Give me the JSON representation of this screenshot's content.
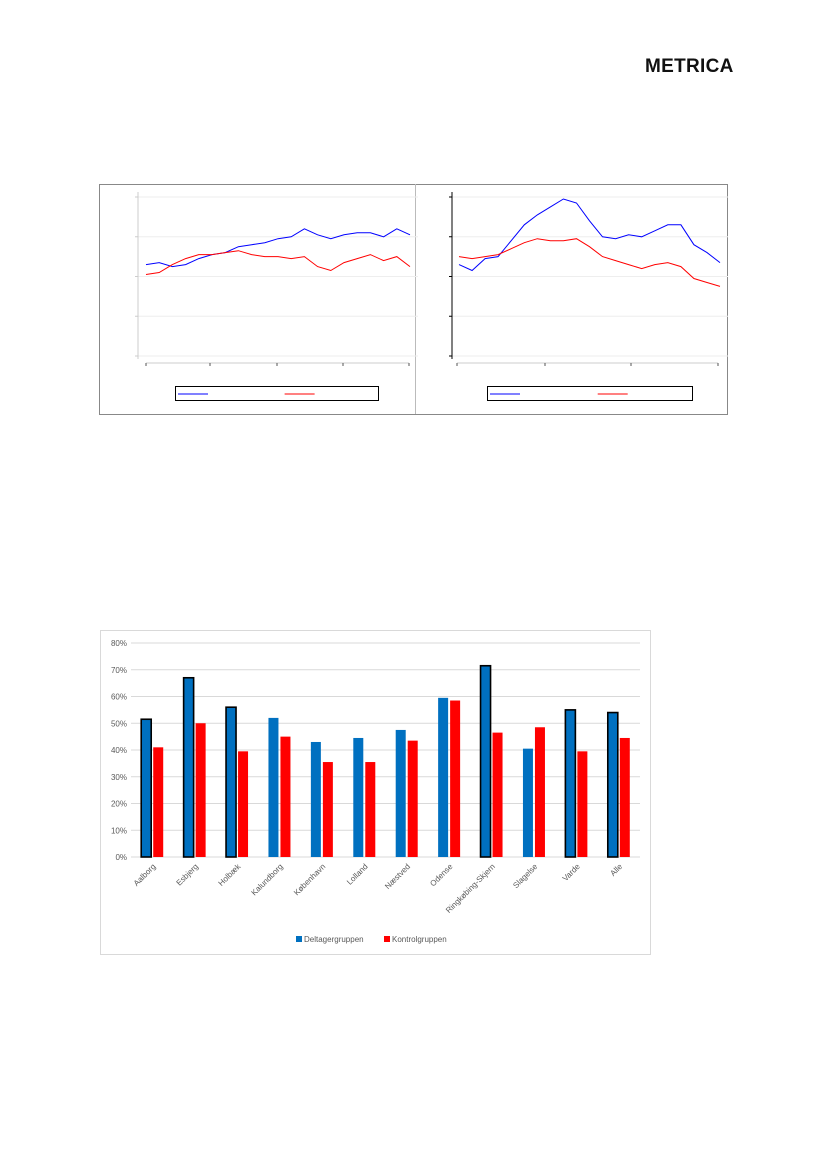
{
  "header": {
    "logo_text": "METRICA"
  },
  "chart_data": [
    {
      "type": "line",
      "title": "",
      "ylim": [
        0,
        4
      ],
      "y_ticks": [
        0,
        1,
        2,
        3,
        4
      ],
      "x_ticks": 5,
      "grid": true,
      "legend": {
        "placement": "bottom",
        "entries": [
          "",
          ""
        ]
      },
      "series": [
        {
          "name": "",
          "color": "#0000ff",
          "values": [
            2.3,
            2.35,
            2.25,
            2.3,
            2.45,
            2.55,
            2.6,
            2.75,
            2.8,
            2.85,
            2.95,
            3.0,
            3.2,
            3.05,
            2.95,
            3.05,
            3.1,
            3.1,
            3.0,
            3.2,
            3.05
          ]
        },
        {
          "name": "",
          "color": "#ff0000",
          "values": [
            2.05,
            2.1,
            2.3,
            2.45,
            2.55,
            2.55,
            2.6,
            2.65,
            2.55,
            2.5,
            2.5,
            2.45,
            2.5,
            2.25,
            2.15,
            2.35,
            2.45,
            2.55,
            2.4,
            2.5,
            2.25
          ]
        }
      ]
    },
    {
      "type": "line",
      "title": "",
      "ylim": [
        0,
        4
      ],
      "y_ticks": [
        0,
        1,
        2,
        3,
        4
      ],
      "x_ticks": 4,
      "grid": true,
      "legend": {
        "placement": "bottom",
        "entries": [
          "",
          ""
        ]
      },
      "series": [
        {
          "name": "",
          "color": "#0000ff",
          "values": [
            2.3,
            2.15,
            2.45,
            2.5,
            2.9,
            3.3,
            3.55,
            3.75,
            3.95,
            3.85,
            3.4,
            3.0,
            2.95,
            3.05,
            3.0,
            3.15,
            3.3,
            3.3,
            2.8,
            2.6,
            2.35
          ]
        },
        {
          "name": "",
          "color": "#ff0000",
          "values": [
            2.5,
            2.45,
            2.5,
            2.55,
            2.7,
            2.85,
            2.95,
            2.9,
            2.9,
            2.95,
            2.75,
            2.5,
            2.4,
            2.3,
            2.2,
            2.3,
            2.35,
            2.25,
            1.95,
            1.85,
            1.75
          ]
        }
      ]
    },
    {
      "type": "bar",
      "title": "",
      "xlabel": "",
      "ylabel": "",
      "ylim": [
        0,
        80
      ],
      "y_ticks": [
        "0%",
        "10%",
        "20%",
        "30%",
        "40%",
        "50%",
        "60%",
        "70%",
        "80%"
      ],
      "grid": true,
      "legend": {
        "placement": "bottom"
      },
      "categories": [
        "Aalborg",
        "Esbjerg",
        "Holbæk",
        "Kalundborg",
        "København",
        "Lolland",
        "Næstved",
        "Odense",
        "Ringkøbing-Skjern",
        "Slagelse",
        "Varde",
        "Alle"
      ],
      "highlighted": [
        true,
        true,
        true,
        false,
        false,
        false,
        false,
        false,
        true,
        false,
        true,
        true
      ],
      "series": [
        {
          "name": "Deltagergruppen",
          "color": "#0070c0",
          "values": [
            51.5,
            67,
            56,
            52,
            43,
            44.5,
            47.5,
            59.5,
            71.5,
            40.5,
            55,
            54
          ]
        },
        {
          "name": "Kontrolgruppen",
          "color": "#ff0000",
          "values": [
            41,
            50,
            39.5,
            45,
            35.5,
            35.5,
            43.5,
            58.5,
            46.5,
            48.5,
            39.5,
            44.5
          ]
        }
      ]
    }
  ]
}
